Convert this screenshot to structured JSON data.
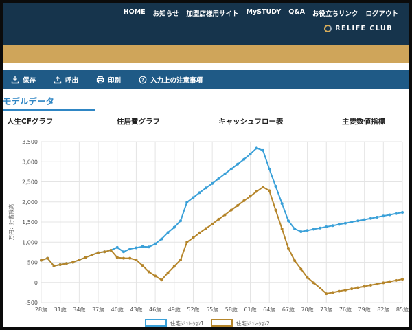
{
  "nav": {
    "items": [
      "HOME",
      "お知らせ",
      "加盟店様用サイト",
      "MySTUDY",
      "Q&A",
      "お役立ちリンク",
      "ログアウト"
    ],
    "brand": "RELIFE CLUB"
  },
  "toolbar": {
    "save_label": "保存",
    "load_label": "呼出",
    "print_label": "印刷",
    "notes_label": "入力上の注意事項"
  },
  "section_title": "モデルデータ",
  "tabs": [
    "人生CFグラフ",
    "住居費グラフ",
    "キャッシュフロー表",
    "主要数値指標"
  ],
  "colors": {
    "plan1": "#3aa0d8",
    "plan2": "#b5852a",
    "toolbar": "#1f5a86",
    "header": "#16344c",
    "gold": "#cfa55a"
  },
  "chart_data": {
    "type": "line",
    "ylabel": "万円：貯蓄残高",
    "ylim": [
      -500,
      3500
    ],
    "yticks": [
      "3,500",
      "3,000",
      "2,500",
      "2,000",
      "1,500",
      "1,000",
      "500",
      "0",
      "-500"
    ],
    "x_tick_labels": [
      "28歳",
      "31歳",
      "34歳",
      "37歳",
      "40歳",
      "43歳",
      "46歳",
      "49歳",
      "52歳",
      "55歳",
      "58歳",
      "61歳",
      "64歳",
      "67歳",
      "70歳",
      "73歳",
      "76歳",
      "79歳",
      "82歳",
      "85歳"
    ],
    "x": [
      28,
      29,
      30,
      31,
      32,
      33,
      34,
      35,
      36,
      37,
      38,
      39,
      40,
      41,
      42,
      43,
      44,
      45,
      46,
      47,
      48,
      49,
      50,
      51,
      52,
      53,
      54,
      55,
      56,
      57,
      58,
      59,
      60,
      61,
      62,
      63,
      64,
      65,
      66,
      67,
      68,
      69,
      70,
      71,
      72,
      73,
      74,
      75,
      76,
      77,
      78,
      79,
      80,
      81,
      82,
      83,
      84,
      85
    ],
    "series": [
      {
        "name": "住宅ｼﾐｭﾚ-ｼｮﾝ1",
        "values": [
          550,
          600,
          410,
          440,
          470,
          500,
          560,
          620,
          680,
          740,
          760,
          800,
          870,
          760,
          830,
          860,
          890,
          880,
          960,
          1080,
          1240,
          1370,
          1530,
          1990,
          2110,
          2230,
          2350,
          2460,
          2580,
          2700,
          2820,
          2940,
          3060,
          3190,
          3340,
          3280,
          2820,
          2390,
          1960,
          1530,
          1330,
          1260,
          1290,
          1320,
          1350,
          1380,
          1410,
          1440,
          1470,
          1500,
          1530,
          1560,
          1590,
          1620,
          1650,
          1680,
          1710,
          1740
        ]
      },
      {
        "name": "住宅ｼﾐｭﾚ-ｼｮﾝ2",
        "values": [
          550,
          600,
          410,
          440,
          470,
          500,
          560,
          620,
          680,
          740,
          760,
          800,
          620,
          600,
          600,
          560,
          420,
          260,
          160,
          60,
          240,
          400,
          560,
          1000,
          1110,
          1230,
          1340,
          1450,
          1570,
          1680,
          1800,
          1910,
          2030,
          2140,
          2260,
          2370,
          2280,
          1800,
          1330,
          850,
          540,
          330,
          120,
          -10,
          -140,
          -280,
          -250,
          -220,
          -190,
          -160,
          -130,
          -100,
          -70,
          -40,
          -10,
          20,
          50,
          80
        ]
      }
    ]
  }
}
